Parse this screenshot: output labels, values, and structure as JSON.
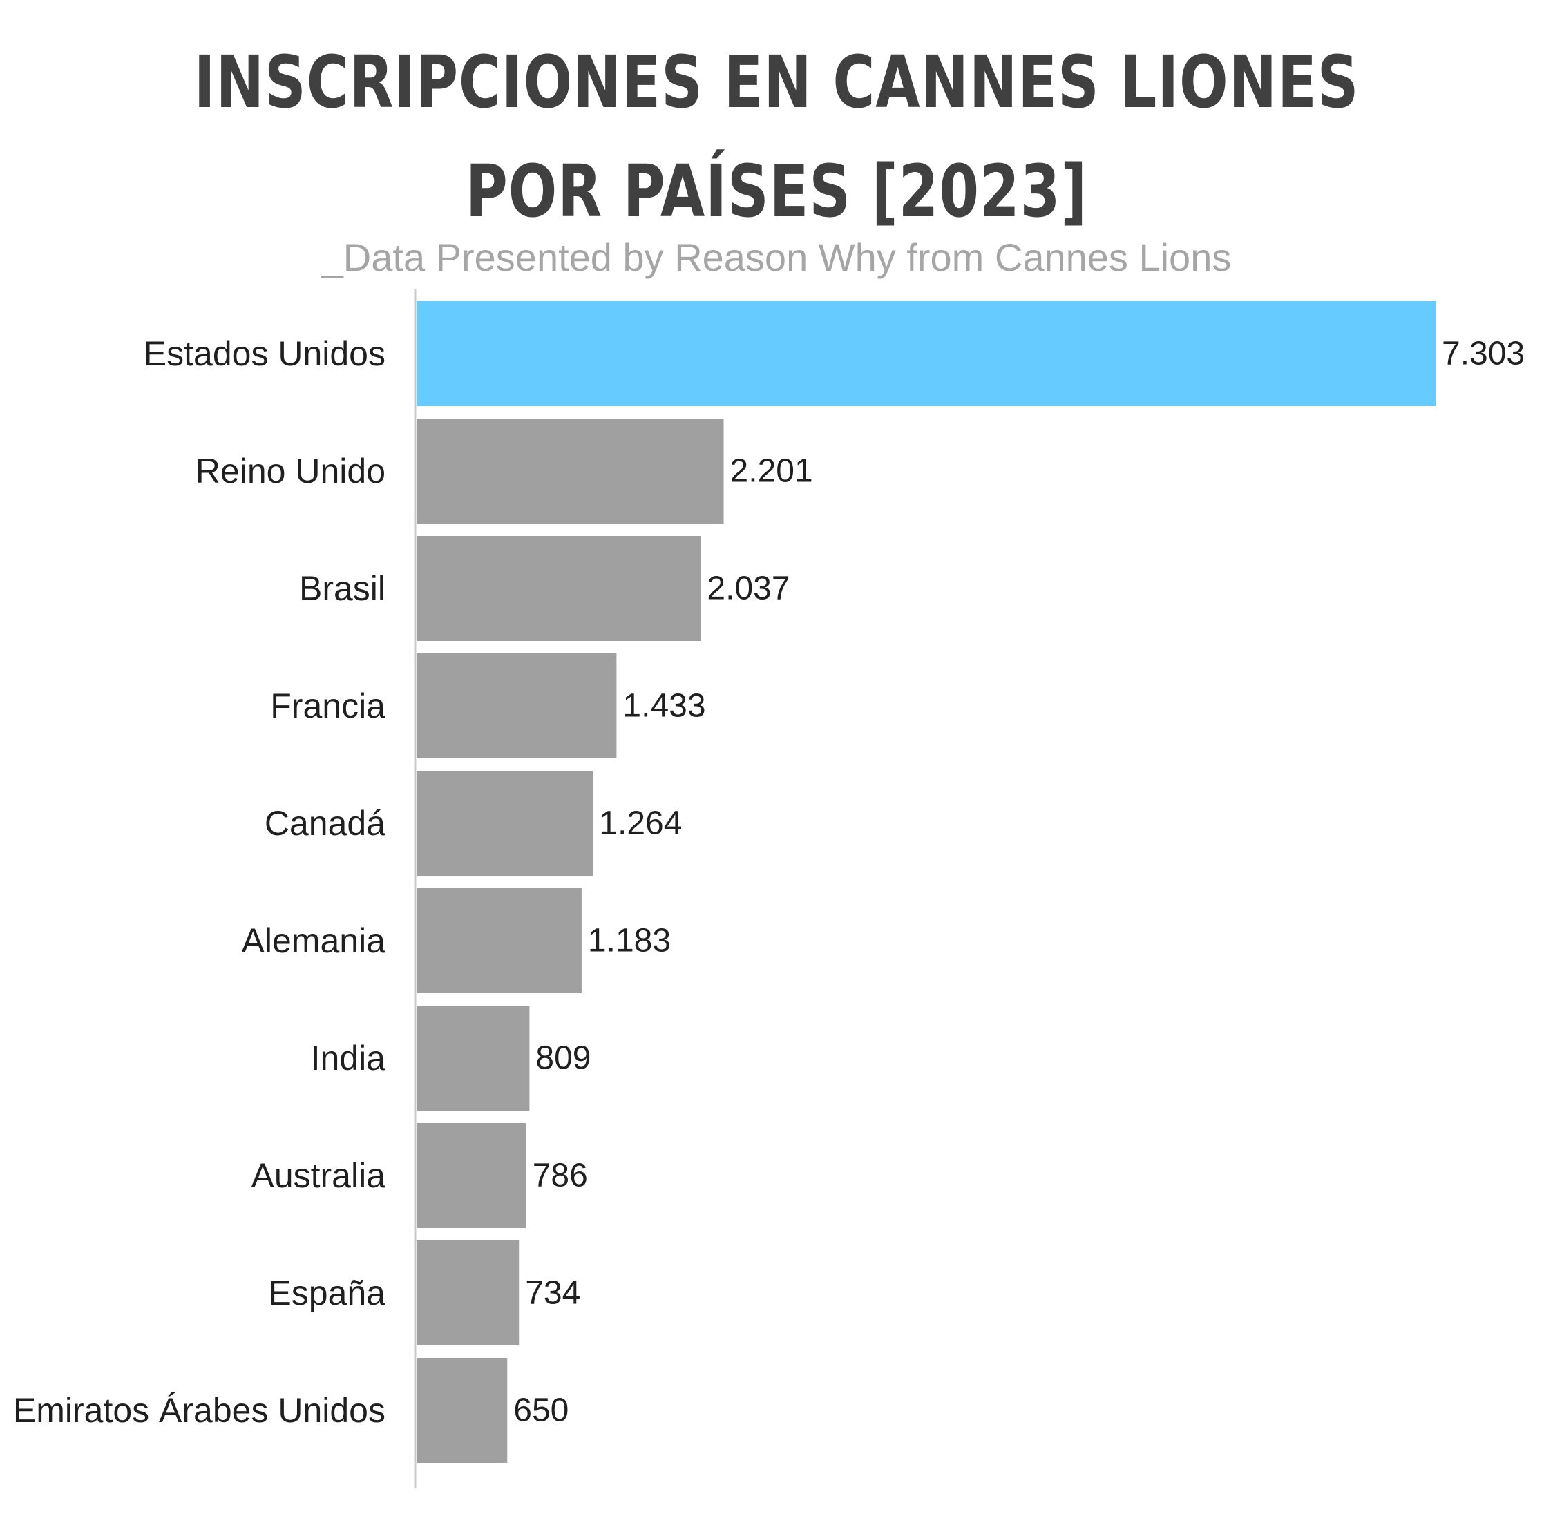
{
  "title_line1": "INSCRIPCIONES EN CANNES LIONES",
  "title_line2": "POR PAÍSES [2023]",
  "subtitle": "_Data Presented by Reason Why from Cannes Lions",
  "chart_data": {
    "type": "bar",
    "orientation": "horizontal",
    "title": "INSCRIPCIONES EN CANNES LIONES POR PAÍSES [2023]",
    "subtitle": "_Data Presented by Reason Why from Cannes Lions",
    "categories": [
      "Estados Unidos",
      "Reino Unido",
      "Brasil",
      "Francia",
      "Canadá",
      "Alemania",
      "India",
      "Australia",
      "España",
      "Emiratos Árabes Unidos"
    ],
    "values": [
      7303,
      2201,
      2037,
      1433,
      1264,
      1183,
      809,
      786,
      734,
      650
    ],
    "value_labels": [
      "7.303",
      "2.201",
      "2.037",
      "1.433",
      "1.264",
      "1.183",
      "809",
      "786",
      "734",
      "650"
    ],
    "xlabel": "",
    "ylabel": "",
    "xlim": [
      0,
      7303
    ],
    "grid": false,
    "legend": "none",
    "highlight_color": "#66ccff",
    "bar_color": "#a0a0a0"
  }
}
